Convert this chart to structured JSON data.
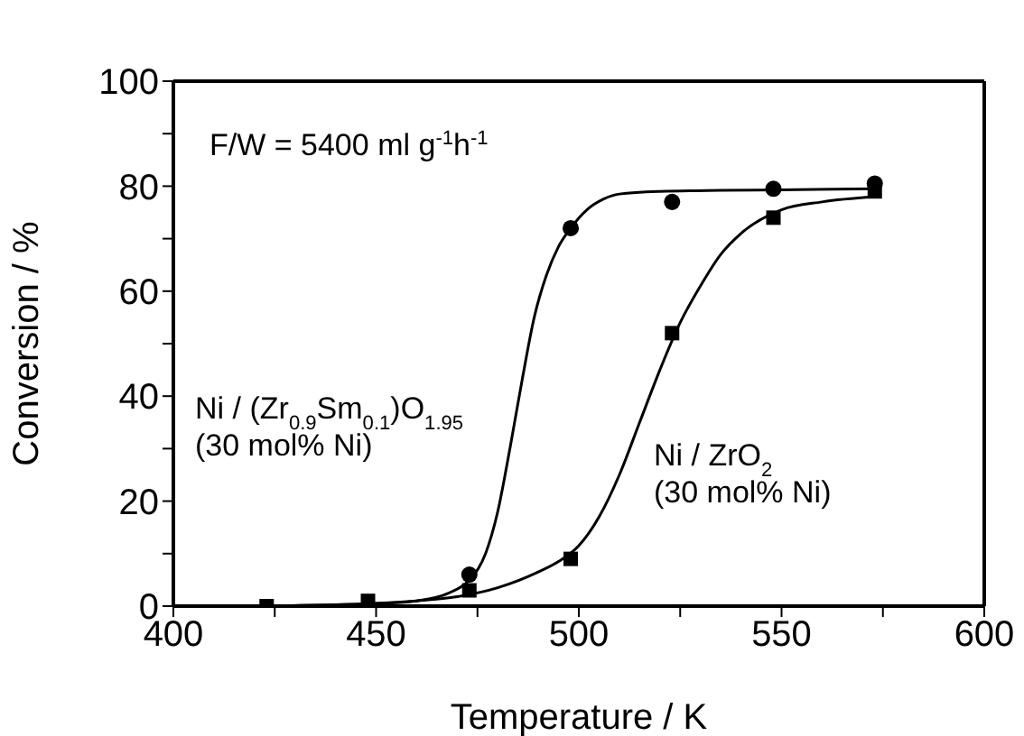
{
  "chart_data": {
    "type": "scatter",
    "xlabel": "Temperature / K",
    "ylabel": "Conversion / %",
    "xlim": [
      400,
      600
    ],
    "xticks": [
      400,
      {
        "value": 425,
        "label": null
      },
      450,
      {
        "value": 475,
        "label": null
      },
      500,
      {
        "value": 525,
        "label": null
      },
      550,
      {
        "value": 575,
        "label": null
      },
      600
    ],
    "ylim": [
      0,
      100
    ],
    "yticks": [
      0,
      {
        "value": 10,
        "label": null
      },
      20,
      {
        "value": 30,
        "label": null
      },
      40,
      {
        "value": 50,
        "label": null
      },
      60,
      {
        "value": 70,
        "label": null
      },
      80,
      {
        "value": 90,
        "label": null
      },
      100
    ],
    "annotations": [
      "F/W = 5400 ml g$^{-1}$h$^{-1}$"
    ],
    "series": [
      {
        "marker": "circle",
        "color": "#000000",
        "x": [
          473,
          498,
          523,
          548,
          573
        ],
        "values": [
          6,
          72,
          77,
          79.5,
          80.5
        ]
      },
      {
        "marker": "square",
        "color": "#000000",
        "x": [
          423,
          448,
          473,
          498,
          523,
          548,
          573
        ],
        "values": [
          0,
          1,
          3,
          9,
          52,
          74,
          79
        ]
      },
      {
        "name": "Ni / (Zr$_{0.9}$Sm$_{0.1}$)O$_{1.95}$\n(30 mol% Ni)",
        "type": "line",
        "marker": "none",
        "line_style": "solid",
        "color": "#000000",
        "x": [
          423,
          450,
          460,
          468,
          473,
          477,
          480,
          483,
          486,
          489,
          492,
          495,
          498,
          502,
          506,
          510,
          520,
          535,
          550,
          573
        ],
        "values": [
          0,
          0.5,
          1,
          2.5,
          5,
          10,
          18,
          30,
          43,
          55,
          63,
          68.5,
          72,
          75.5,
          77.5,
          78.5,
          79,
          79.2,
          79.3,
          79.5
        ]
      },
      {
        "name": "Ni / ZrO$_{2}$\n(30 mol% Ni)",
        "type": "line",
        "marker": "none",
        "line_style": "solid",
        "color": "#000000",
        "x": [
          423,
          450,
          460,
          470,
          480,
          490,
          495,
          500,
          505,
          510,
          515,
          520,
          525,
          530,
          535,
          540,
          550,
          560,
          573
        ],
        "values": [
          0,
          0.5,
          1,
          1.8,
          3.5,
          6.5,
          8.5,
          11.5,
          17,
          25,
          35,
          45,
          54,
          61,
          67,
          71,
          75.5,
          77,
          78
        ]
      }
    ]
  }
}
